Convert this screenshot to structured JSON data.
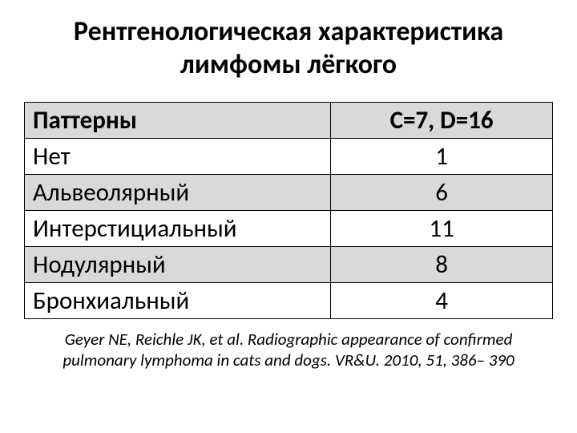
{
  "title": {
    "text": "Рентгенологическая характеристика лимфомы лёгкого",
    "fontsize": 34
  },
  "table": {
    "type": "table",
    "header": {
      "label": "Паттерны",
      "value": "C=7, D=16",
      "background": "#d9d9d9",
      "fontweight": "bold"
    },
    "rows": [
      {
        "label": "Нет",
        "value": "1",
        "alt": false
      },
      {
        "label": "Альвеолярный",
        "value": "6",
        "alt": true
      },
      {
        "label": "Интерстициальный",
        "value": "11",
        "alt": false
      },
      {
        "label": "Нодулярный",
        "value": "8",
        "alt": true
      },
      {
        "label": "Бронхиальный",
        "value": "4",
        "alt": false
      }
    ],
    "cell_fontsize": 31,
    "border_color": "#000000",
    "alt_background": "#d9d9d9",
    "background": "#ffffff",
    "text_color": "#000000"
  },
  "citation": {
    "text": "Geyer NE, Reichle JK, et al. Radiographic appearance of confirmed pulmonary lymphoma in cats and dogs. VR&U. 2010, 51, 386– 390",
    "fontsize": 21
  }
}
